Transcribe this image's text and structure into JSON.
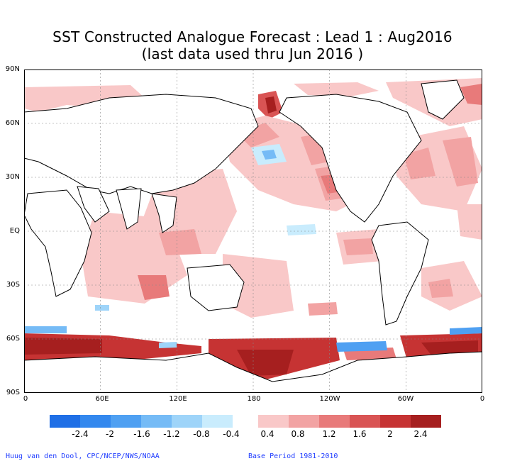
{
  "title": "SST Constructed Analogue Forecast : Lead 1 : Aug2016",
  "subtitle": "(last data used thru Jun 2016 )",
  "lat_labels": [
    "90N",
    "60N",
    "30N",
    "EQ",
    "30S",
    "60S",
    "90S"
  ],
  "lon_labels": [
    "0",
    "60E",
    "120E",
    "180",
    "120W",
    "60W",
    "0"
  ],
  "legend": {
    "negative_labels": [
      "-2.4",
      "-2",
      "-1.6",
      "-1.2",
      "-0.8",
      "-0.4"
    ],
    "positive_labels": [
      "0.4",
      "0.8",
      "1.2",
      "1.6",
      "2",
      "2.4"
    ],
    "negative_colors": [
      "#1f6fe6",
      "#3388ee",
      "#4fa0f2",
      "#75bbf6",
      "#9ed4f9",
      "#c9ecfd"
    ],
    "positive_colors": [
      "#f9c8c8",
      "#f2a3a3",
      "#e87a7a",
      "#d95454",
      "#c63333",
      "#a61f1f"
    ]
  },
  "footer_left": "Huug van den Dool, CPC/NCEP/NWS/NOAA",
  "footer_right": "Base Period 1981-2010"
}
